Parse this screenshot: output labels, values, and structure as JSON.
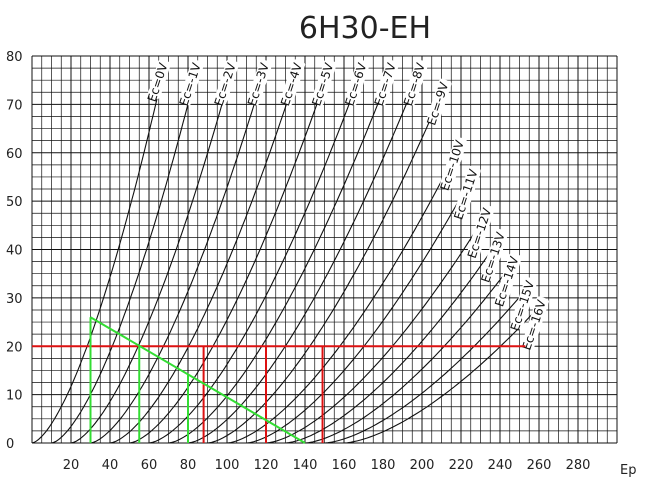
{
  "chart_data": {
    "type": "line",
    "title": "6H30-EH",
    "xlabel": "Ep",
    "ylabel": "",
    "xlim": [
      0,
      300
    ],
    "ylim": [
      0,
      80
    ],
    "x_ticks": [
      20,
      40,
      60,
      80,
      100,
      120,
      140,
      160,
      180,
      200,
      220,
      240,
      260,
      280
    ],
    "y_ticks": [
      0,
      10,
      20,
      30,
      40,
      50,
      60,
      70,
      80
    ],
    "grid": true,
    "series": [
      {
        "name": "Ec=0V",
        "x0": 0,
        "top": [
          68,
          78
        ]
      },
      {
        "name": "Ec=-1V",
        "x0": 10,
        "top": [
          85,
          78
        ]
      },
      {
        "name": "Ec=-2V",
        "x0": 20,
        "top": [
          103,
          78
        ]
      },
      {
        "name": "Ec=-3V",
        "x0": 30,
        "top": [
          120,
          78
        ]
      },
      {
        "name": "Ec=-4V",
        "x0": 40,
        "top": [
          137,
          78
        ]
      },
      {
        "name": "Ec=-5V",
        "x0": 50,
        "top": [
          153,
          78
        ]
      },
      {
        "name": "Ec=-6V",
        "x0": 60,
        "top": [
          170,
          78
        ]
      },
      {
        "name": "Ec=-7V",
        "x0": 70,
        "top": [
          185,
          78
        ]
      },
      {
        "name": "Ec=-8V",
        "x0": 80,
        "top": [
          200,
          78
        ]
      },
      {
        "name": "Ec=-9V",
        "x0": 90,
        "top": [
          212,
          74
        ]
      },
      {
        "name": "Ec=-10V",
        "x0": 100,
        "top": [
          220,
          62
        ]
      },
      {
        "name": "Ec=-11V",
        "x0": 110,
        "top": [
          227,
          56
        ]
      },
      {
        "name": "Ec=-12V",
        "x0": 120,
        "top": [
          234,
          48
        ]
      },
      {
        "name": "Ec=-13V",
        "x0": 130,
        "top": [
          241,
          43
        ]
      },
      {
        "name": "Ec=-14V",
        "x0": 140,
        "top": [
          248,
          38
        ]
      },
      {
        "name": "Ec=-15V",
        "x0": 150,
        "top": [
          256,
          33
        ]
      },
      {
        "name": "Ec=-16V",
        "x0": 160,
        "top": [
          262,
          29
        ]
      }
    ],
    "load_line": {
      "color": "#33dd33",
      "points": [
        [
          30,
          26
        ],
        [
          140,
          0
        ]
      ]
    },
    "load_line_drops": {
      "color": "#33dd33",
      "x": [
        30,
        55,
        80
      ]
    },
    "bias_line": {
      "color": "#dd1111",
      "y": 20,
      "x_range": [
        0,
        253
      ]
    },
    "bias_line_drops": {
      "color": "#dd1111",
      "x": [
        88,
        120,
        149
      ]
    }
  }
}
